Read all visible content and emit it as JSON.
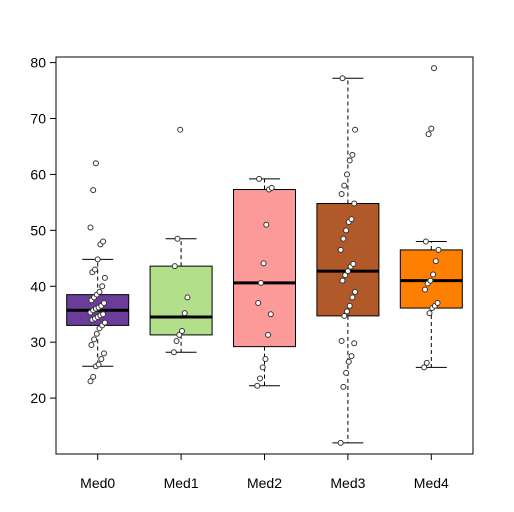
{
  "chart_data": {
    "type": "box",
    "title": "",
    "xlabel": "",
    "ylabel": "",
    "ylim": [
      10,
      81
    ],
    "yticks": [
      20,
      30,
      40,
      50,
      60,
      70,
      80
    ],
    "categories": [
      "Med0",
      "Med1",
      "Med2",
      "Med3",
      "Med4"
    ],
    "colors": [
      "#6A3D9A",
      "#B2DF8A",
      "#FB9A99",
      "#B15928",
      "#FF7F00"
    ],
    "boxes": [
      {
        "name": "Med0",
        "lower_whisker": 25.7,
        "q1": 33.0,
        "median": 35.7,
        "q3": 38.5,
        "upper_whisker": 44.8,
        "points": [
          23,
          23.8,
          25.7,
          26,
          27,
          28,
          29.5,
          30.5,
          31.5,
          32.5,
          33,
          33.5,
          34,
          34.2,
          34.5,
          34.8,
          35,
          35.3,
          35.7,
          36,
          36.2,
          36.5,
          37,
          37.5,
          38,
          38.5,
          39,
          40,
          41.5,
          42.5,
          43,
          44.8,
          47.5,
          48,
          50.5,
          57.2,
          62
        ]
      },
      {
        "name": "Med1",
        "lower_whisker": 28.2,
        "q1": 31.3,
        "median": 34.5,
        "q3": 43.6,
        "upper_whisker": 48.5,
        "points": [
          28.2,
          30.2,
          31.3,
          32,
          35.2,
          38,
          43.6,
          48.5,
          68
        ]
      },
      {
        "name": "Med2",
        "lower_whisker": 22.2,
        "q1": 29.2,
        "median": 40.6,
        "q3": 57.3,
        "upper_whisker": 59.2,
        "points": [
          22.2,
          23.5,
          25.5,
          27,
          31.3,
          35,
          37,
          40.6,
          44.1,
          51,
          57.3,
          57.6,
          59.2
        ]
      },
      {
        "name": "Med3",
        "lower_whisker": 12.0,
        "q1": 34.7,
        "median": 42.7,
        "q3": 54.8,
        "upper_whisker": 77.2,
        "points": [
          12,
          22,
          24.5,
          26.5,
          27.5,
          29.8,
          30.2,
          34.7,
          35.5,
          36.5,
          38,
          39,
          41,
          42,
          42.7,
          43.5,
          44,
          46.5,
          48.5,
          50,
          51.5,
          52,
          54.8,
          56.5,
          58,
          60,
          62.5,
          63.5,
          68,
          77.2
        ]
      },
      {
        "name": "Med4",
        "lower_whisker": 25.5,
        "q1": 36.1,
        "median": 41.0,
        "q3": 46.5,
        "upper_whisker": 48.0,
        "points": [
          25.5,
          26.3,
          35.2,
          36.1,
          36.5,
          37,
          39.4,
          40.5,
          41,
          42.1,
          44.5,
          46.5,
          48,
          67.2,
          68.2,
          79
        ]
      }
    ]
  }
}
